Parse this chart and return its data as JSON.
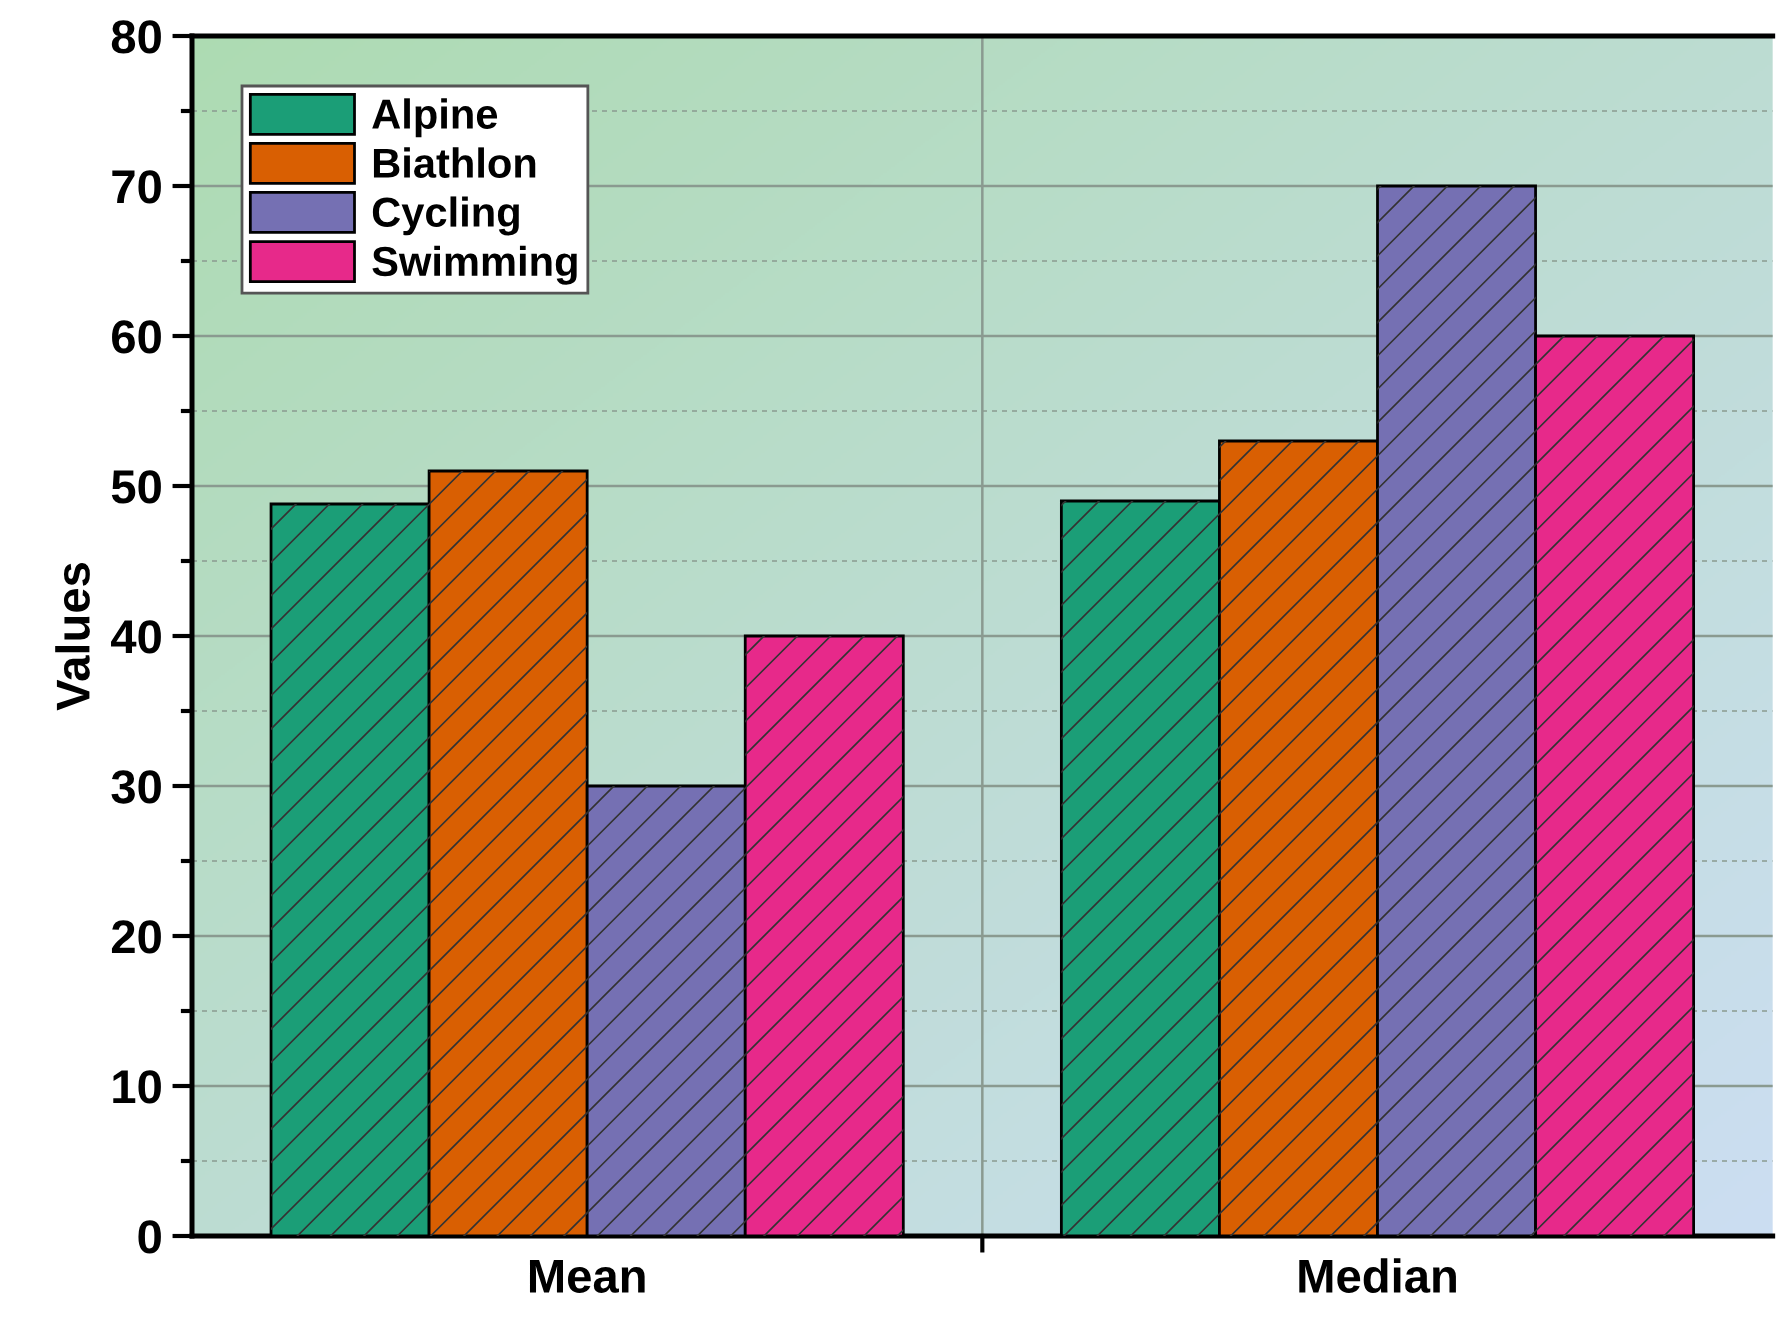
{
  "chart_data": {
    "type": "bar",
    "ylabel": "Values",
    "categories": [
      "Mean",
      "Median"
    ],
    "series": [
      {
        "name": "Alpine",
        "color": "#1b9e77",
        "values": [
          48.8,
          49
        ]
      },
      {
        "name": "Biathlon",
        "color": "#d95f02",
        "values": [
          51,
          53
        ]
      },
      {
        "name": "Cycling",
        "color": "#7570b3",
        "values": [
          30,
          70
        ]
      },
      {
        "name": "Swimming",
        "color": "#e7298a",
        "values": [
          40,
          60
        ]
      }
    ],
    "ylim": [
      0,
      80
    ],
    "yticks": [
      0,
      {
        "value": 5,
        "label": null
      },
      10,
      {
        "value": 15,
        "label": null
      },
      20,
      {
        "value": 25,
        "label": null
      },
      30,
      {
        "value": 35,
        "label": null
      },
      40,
      {
        "value": 45,
        "label": null
      },
      50,
      {
        "value": 55,
        "label": null
      },
      60,
      {
        "value": 65,
        "label": null
      },
      70,
      {
        "value": 75,
        "label": null
      },
      80
    ],
    "grid": true,
    "legend": "top left"
  }
}
